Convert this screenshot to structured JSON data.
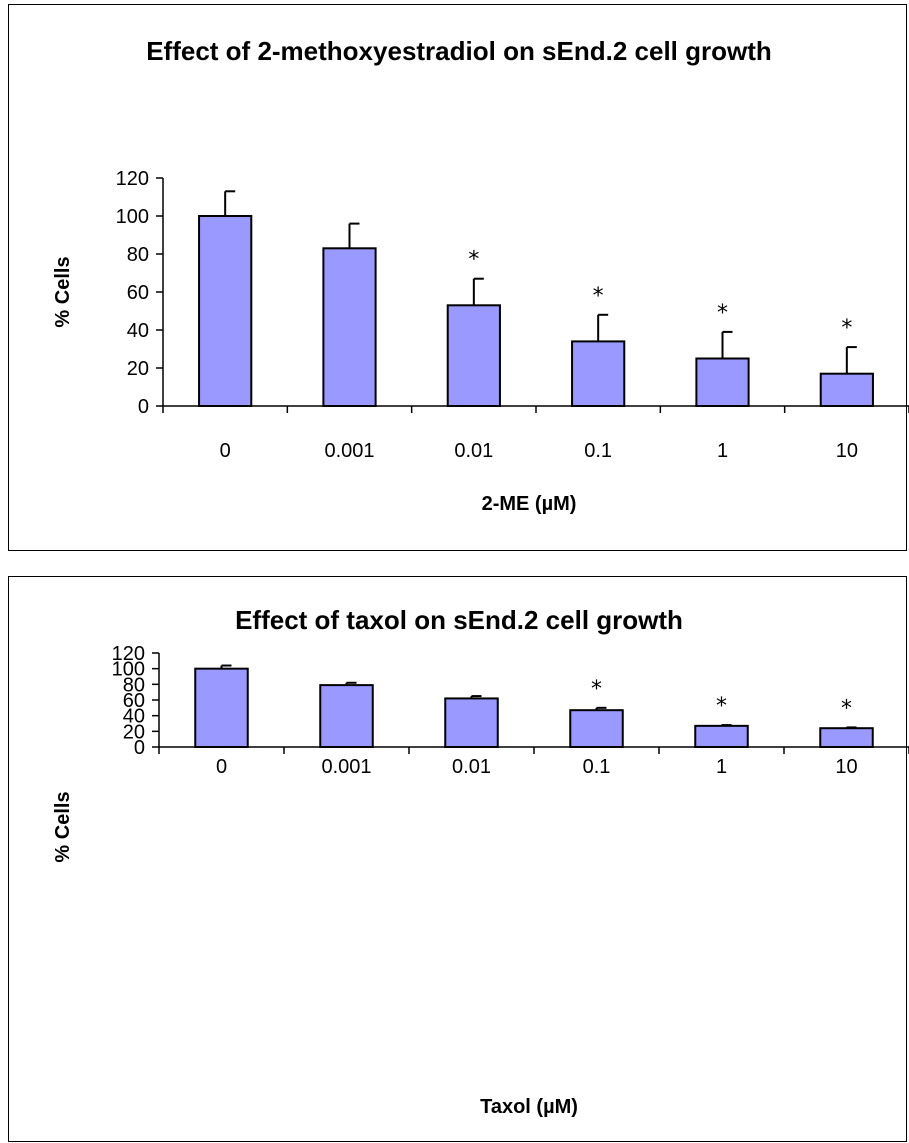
{
  "chart_data": [
    {
      "type": "bar",
      "title": "Effect of 2-methoxyestradiol on sEnd.2 cell growth",
      "xlabel": "2-ME (µM)",
      "ylabel": "% Cells",
      "categories": [
        "0",
        "0.001",
        "0.01",
        "0.1",
        "1",
        "10"
      ],
      "values": [
        100,
        83,
        53,
        34,
        25,
        17
      ],
      "errors": [
        13,
        13,
        14,
        14,
        14,
        14
      ],
      "significant": [
        "",
        "",
        "*",
        "*",
        "*",
        "*"
      ],
      "ylim": [
        0,
        120
      ],
      "yticks": [
        0,
        20,
        40,
        60,
        80,
        100,
        120
      ],
      "grid": false,
      "bar_color": "#9999ff"
    },
    {
      "type": "bar",
      "title": "Effect of taxol on sEnd.2 cell growth",
      "xlabel": "Taxol (µM)",
      "ylabel": "% Cells",
      "categories": [
        "0",
        "0.001",
        "0.01",
        "0.1",
        "1",
        "10"
      ],
      "values": [
        100,
        79,
        62,
        47,
        27,
        24
      ],
      "errors": [
        4,
        3,
        3,
        3,
        1,
        1
      ],
      "significant": [
        "",
        "",
        "",
        "*",
        "*",
        "*"
      ],
      "ylim": [
        0,
        120
      ],
      "yticks": [
        0,
        20,
        40,
        60,
        80,
        100,
        120
      ],
      "grid": false,
      "bar_color": "#9999ff"
    }
  ]
}
